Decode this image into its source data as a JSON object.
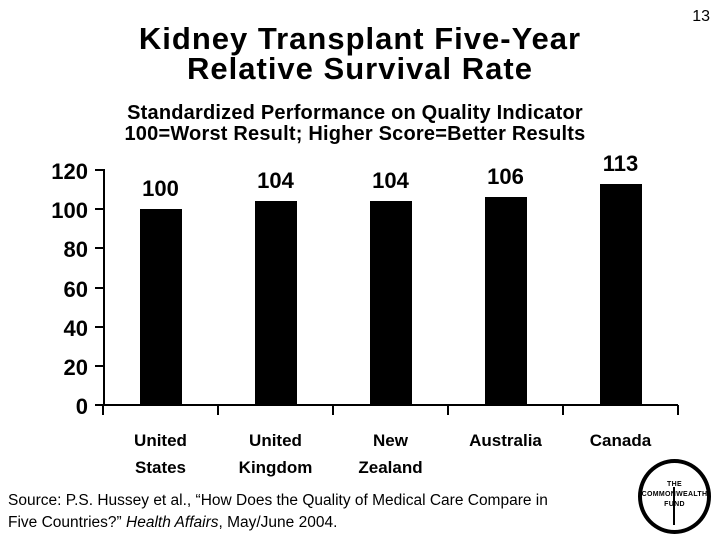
{
  "page_number": "13",
  "title": {
    "line1": "Kidney Transplant Five-Year",
    "line2": "Relative Survival Rate"
  },
  "subtitle": {
    "line1": "Standardized Performance on Quality Indicator",
    "line2": "100=Worst Result; Higher Score=Better Results"
  },
  "chart_data": {
    "type": "bar",
    "title": "Standardized Performance on Quality Indicator 100=Worst Result; Higher Score=Better Results",
    "categories": [
      "United States",
      "United Kingdom",
      "New Zealand",
      "Australia",
      "Canada"
    ],
    "values": [
      100,
      104,
      104,
      106,
      113
    ],
    "data_labels": [
      "100",
      "104",
      "104",
      "106",
      "113"
    ],
    "xlabel": "",
    "ylabel": "",
    "ylim": [
      0,
      120
    ],
    "yticks": [
      0,
      20,
      40,
      60,
      80,
      100,
      120
    ],
    "grid": false,
    "legend": "none",
    "bar_color": "#000000",
    "axis_color": "#000000"
  },
  "source": {
    "line1": "Source: P.S. Hussey et al., “How Does the Quality of Medical Care Compare in",
    "line2_pre": "Five Countries?” ",
    "line2_italic": "Health Affairs",
    "line2_post": ", May/June 2004."
  },
  "logo": {
    "line1": "THE",
    "line2": "COMMONWEALTH",
    "line3": "FUND"
  }
}
